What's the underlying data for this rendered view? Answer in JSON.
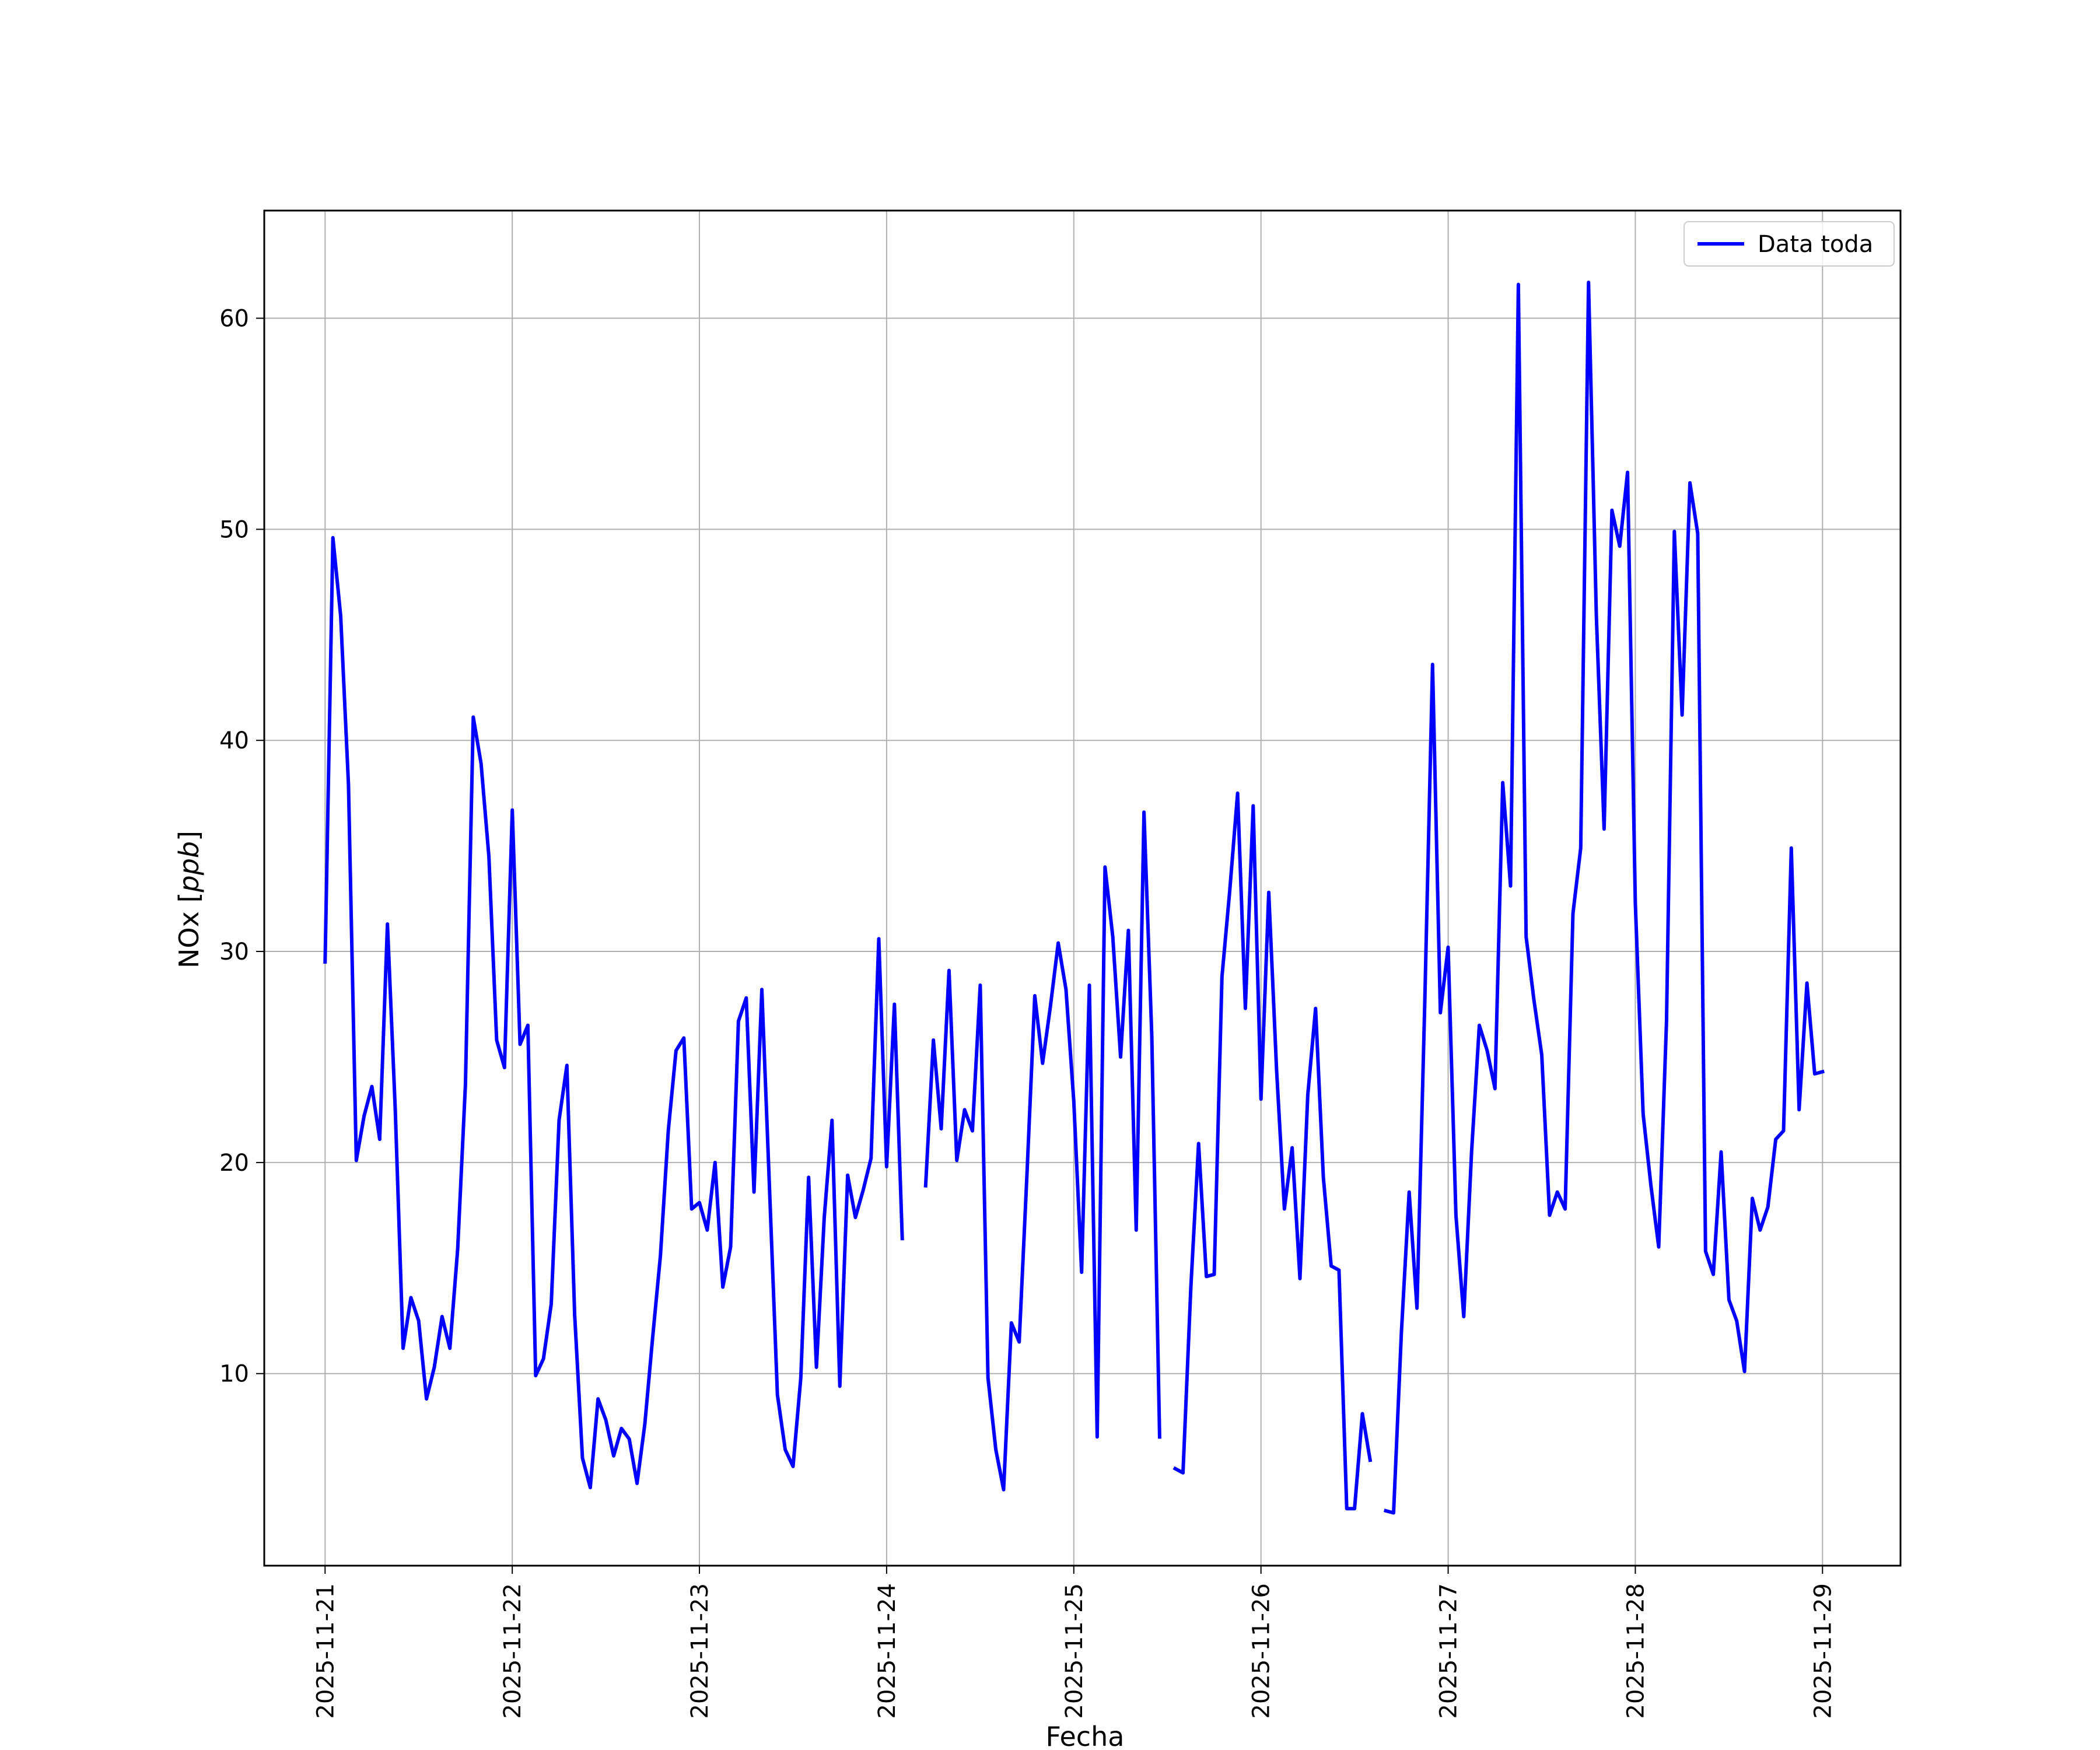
{
  "chart_data": {
    "type": "line",
    "xlabel": "Fecha",
    "ylabel": "NOx [ppb]",
    "ylabel_main": "NOx ",
    "ylabel_unit": "ppb",
    "x_ticks": [
      "2025-11-21",
      "2025-11-22",
      "2025-11-23",
      "2025-11-24",
      "2025-11-25",
      "2025-11-26",
      "2025-11-27",
      "2025-11-28",
      "2025-11-29"
    ],
    "y_ticks": [
      10,
      20,
      30,
      40,
      50,
      60
    ],
    "xlim": [
      "2025-11-20 16:12",
      "2025-11-29 10:00"
    ],
    "ylim": [
      0.9,
      65.1
    ],
    "grid": true,
    "legend_placement": "top-right",
    "series": [
      {
        "name": "Data toda",
        "color": "#0000ff",
        "points": [
          [
            "2025-11-21 00:00",
            29.5
          ],
          [
            "2025-11-21 01:00",
            49.6
          ],
          [
            "2025-11-21 02:00",
            45.9
          ],
          [
            "2025-11-21 03:00",
            37.9
          ],
          [
            "2025-11-21 04:00",
            20.1
          ],
          [
            "2025-11-21 05:00",
            22.2
          ],
          [
            "2025-11-21 06:00",
            23.6
          ],
          [
            "2025-11-21 07:00",
            21.1
          ],
          [
            "2025-11-21 08:00",
            31.3
          ],
          [
            "2025-11-21 09:00",
            22.5
          ],
          [
            "2025-11-21 10:00",
            11.2
          ],
          [
            "2025-11-21 11:00",
            13.6
          ],
          [
            "2025-11-21 12:00",
            12.5
          ],
          [
            "2025-11-21 13:00",
            8.8
          ],
          [
            "2025-11-21 14:00",
            10.3
          ],
          [
            "2025-11-21 15:00",
            12.7
          ],
          [
            "2025-11-21 16:00",
            11.2
          ],
          [
            "2025-11-21 17:00",
            15.9
          ],
          [
            "2025-11-21 18:00",
            23.7
          ],
          [
            "2025-11-21 19:00",
            41.1
          ],
          [
            "2025-11-21 20:00",
            38.9
          ],
          [
            "2025-11-21 21:00",
            34.5
          ],
          [
            "2025-11-21 22:00",
            25.8
          ],
          [
            "2025-11-21 23:00",
            24.5
          ],
          [
            "2025-11-22 00:00",
            36.7
          ],
          [
            "2025-11-22 01:00",
            25.6
          ],
          [
            "2025-11-22 02:00",
            26.5
          ],
          [
            "2025-11-22 03:00",
            9.9
          ],
          [
            "2025-11-22 04:00",
            10.7
          ],
          [
            "2025-11-22 05:00",
            13.3
          ],
          [
            "2025-11-22 06:00",
            22.0
          ],
          [
            "2025-11-22 07:00",
            24.6
          ],
          [
            "2025-11-22 08:00",
            12.8
          ],
          [
            "2025-11-22 09:00",
            6.0
          ],
          [
            "2025-11-22 10:00",
            4.6
          ],
          [
            "2025-11-22 11:00",
            8.8
          ],
          [
            "2025-11-22 12:00",
            7.8
          ],
          [
            "2025-11-22 13:00",
            6.1
          ],
          [
            "2025-11-22 14:00",
            7.4
          ],
          [
            "2025-11-22 15:00",
            6.9
          ],
          [
            "2025-11-22 16:00",
            4.8
          ],
          [
            "2025-11-22 17:00",
            7.6
          ],
          [
            "2025-11-22 18:00",
            11.7
          ],
          [
            "2025-11-22 19:00",
            15.6
          ],
          [
            "2025-11-22 20:00",
            21.5
          ],
          [
            "2025-11-22 21:00",
            25.3
          ],
          [
            "2025-11-22 22:00",
            25.9
          ],
          [
            "2025-11-22 23:00",
            17.8
          ],
          [
            "2025-11-23 00:00",
            18.1
          ],
          [
            "2025-11-23 01:00",
            16.8
          ],
          [
            "2025-11-23 02:00",
            20.0
          ],
          [
            "2025-11-23 03:00",
            14.1
          ],
          [
            "2025-11-23 04:00",
            16.0
          ],
          [
            "2025-11-23 05:00",
            26.7
          ],
          [
            "2025-11-23 06:00",
            27.8
          ],
          [
            "2025-11-23 07:00",
            18.6
          ],
          [
            "2025-11-23 08:00",
            28.2
          ],
          [
            "2025-11-23 09:00",
            18.6
          ],
          [
            "2025-11-23 10:00",
            9.0
          ],
          [
            "2025-11-23 11:00",
            6.4
          ],
          [
            "2025-11-23 12:00",
            5.6
          ],
          [
            "2025-11-23 13:00",
            9.8
          ],
          [
            "2025-11-23 14:00",
            19.3
          ],
          [
            "2025-11-23 15:00",
            10.3
          ],
          [
            "2025-11-23 16:00",
            17.4
          ],
          [
            "2025-11-23 17:00",
            22.0
          ],
          [
            "2025-11-23 18:00",
            9.4
          ],
          [
            "2025-11-23 19:00",
            19.4
          ],
          [
            "2025-11-23 20:00",
            17.4
          ],
          [
            "2025-11-23 21:00",
            18.7
          ],
          [
            "2025-11-23 22:00",
            20.2
          ],
          [
            "2025-11-23 23:00",
            30.6
          ],
          [
            "2025-11-24 00:00",
            19.8
          ],
          [
            "2025-11-24 01:00",
            27.5
          ],
          [
            "2025-11-24 02:00",
            16.4
          ],
          null,
          [
            "2025-11-24 05:00",
            18.9
          ],
          [
            "2025-11-24 06:00",
            25.8
          ],
          [
            "2025-11-24 07:00",
            21.6
          ],
          [
            "2025-11-24 08:00",
            29.1
          ],
          [
            "2025-11-24 09:00",
            20.1
          ],
          [
            "2025-11-24 10:00",
            22.5
          ],
          [
            "2025-11-24 11:00",
            21.5
          ],
          [
            "2025-11-24 12:00",
            28.4
          ],
          [
            "2025-11-24 13:00",
            9.8
          ],
          [
            "2025-11-24 14:00",
            6.4
          ],
          [
            "2025-11-24 15:00",
            4.5
          ],
          [
            "2025-11-24 16:00",
            12.4
          ],
          [
            "2025-11-24 17:00",
            11.5
          ],
          [
            "2025-11-24 18:00",
            19.5
          ],
          [
            "2025-11-24 19:00",
            27.9
          ],
          [
            "2025-11-24 20:00",
            24.7
          ],
          [
            "2025-11-24 21:00",
            27.4
          ],
          [
            "2025-11-24 22:00",
            30.4
          ],
          [
            "2025-11-24 23:00",
            28.2
          ],
          [
            "2025-11-25 00:00",
            22.9
          ],
          [
            "2025-11-25 01:00",
            14.8
          ],
          [
            "2025-11-25 02:00",
            28.4
          ],
          [
            "2025-11-25 03:00",
            7.0
          ],
          [
            "2025-11-25 04:00",
            34.0
          ],
          [
            "2025-11-25 05:00",
            30.7
          ],
          [
            "2025-11-25 06:00",
            25.0
          ],
          [
            "2025-11-25 07:00",
            31.0
          ],
          [
            "2025-11-25 08:00",
            16.8
          ],
          [
            "2025-11-25 09:00",
            36.6
          ],
          [
            "2025-11-25 10:00",
            26.0
          ],
          [
            "2025-11-25 11:00",
            7.0
          ],
          null,
          [
            "2025-11-25 13:00",
            5.5
          ],
          [
            "2025-11-25 14:00",
            5.3
          ],
          [
            "2025-11-25 15:00",
            14.0
          ],
          [
            "2025-11-25 16:00",
            20.9
          ],
          [
            "2025-11-25 17:00",
            14.6
          ],
          [
            "2025-11-25 18:00",
            14.7
          ],
          [
            "2025-11-25 19:00",
            28.8
          ],
          [
            "2025-11-25 20:00",
            32.9
          ],
          [
            "2025-11-25 21:00",
            37.5
          ],
          [
            "2025-11-25 22:00",
            27.3
          ],
          [
            "2025-11-25 23:00",
            36.9
          ],
          [
            "2025-11-26 00:00",
            23.0
          ],
          [
            "2025-11-26 01:00",
            32.8
          ],
          [
            "2025-11-26 02:00",
            24.4
          ],
          [
            "2025-11-26 03:00",
            17.8
          ],
          [
            "2025-11-26 04:00",
            20.7
          ],
          [
            "2025-11-26 05:00",
            14.5
          ],
          [
            "2025-11-26 06:00",
            23.2
          ],
          [
            "2025-11-26 07:00",
            27.3
          ],
          [
            "2025-11-26 08:00",
            19.3
          ],
          [
            "2025-11-26 09:00",
            15.1
          ],
          [
            "2025-11-26 10:00",
            14.9
          ],
          [
            "2025-11-26 11:00",
            3.6
          ],
          [
            "2025-11-26 12:00",
            3.6
          ],
          [
            "2025-11-26 13:00",
            8.1
          ],
          [
            "2025-11-26 14:00",
            5.9
          ],
          null,
          [
            "2025-11-26 16:00",
            3.5
          ],
          [
            "2025-11-26 17:00",
            3.4
          ],
          [
            "2025-11-26 18:00",
            11.9
          ],
          [
            "2025-11-26 19:00",
            18.6
          ],
          [
            "2025-11-26 20:00",
            13.1
          ],
          [
            "2025-11-26 21:00",
            27.5
          ],
          [
            "2025-11-26 22:00",
            43.6
          ],
          [
            "2025-11-26 23:00",
            27.1
          ],
          [
            "2025-11-27 00:00",
            30.2
          ],
          [
            "2025-11-27 01:00",
            17.5
          ],
          [
            "2025-11-27 02:00",
            12.7
          ],
          [
            "2025-11-27 03:00",
            20.5
          ],
          [
            "2025-11-27 04:00",
            26.5
          ],
          [
            "2025-11-27 05:00",
            25.3
          ],
          [
            "2025-11-27 06:00",
            23.5
          ],
          [
            "2025-11-27 07:00",
            38.0
          ],
          [
            "2025-11-27 08:00",
            33.1
          ],
          [
            "2025-11-27 09:00",
            61.6
          ],
          [
            "2025-11-27 10:00",
            30.7
          ],
          [
            "2025-11-27 11:00",
            27.7
          ],
          [
            "2025-11-27 12:00",
            25.1
          ],
          [
            "2025-11-27 13:00",
            17.5
          ],
          [
            "2025-11-27 14:00",
            18.6
          ],
          [
            "2025-11-27 15:00",
            17.8
          ],
          [
            "2025-11-27 16:00",
            31.8
          ],
          [
            "2025-11-27 17:00",
            34.9
          ],
          [
            "2025-11-27 18:00",
            61.7
          ],
          [
            "2025-11-27 19:00",
            45.9
          ],
          [
            "2025-11-27 20:00",
            35.8
          ],
          [
            "2025-11-27 21:00",
            50.9
          ],
          [
            "2025-11-27 22:00",
            49.2
          ],
          [
            "2025-11-27 23:00",
            52.7
          ],
          [
            "2025-11-28 00:00",
            32.3
          ],
          [
            "2025-11-28 01:00",
            22.3
          ],
          [
            "2025-11-28 02:00",
            18.9
          ],
          [
            "2025-11-28 03:00",
            16.0
          ],
          [
            "2025-11-28 04:00",
            26.7
          ],
          [
            "2025-11-28 05:00",
            49.9
          ],
          [
            "2025-11-28 06:00",
            41.2
          ],
          [
            "2025-11-28 07:00",
            52.2
          ],
          [
            "2025-11-28 08:00",
            49.8
          ],
          [
            "2025-11-28 09:00",
            15.8
          ],
          [
            "2025-11-28 10:00",
            14.7
          ],
          [
            "2025-11-28 11:00",
            20.5
          ],
          [
            "2025-11-28 12:00",
            13.5
          ],
          [
            "2025-11-28 13:00",
            12.5
          ],
          [
            "2025-11-28 14:00",
            10.1
          ],
          [
            "2025-11-28 15:00",
            18.3
          ],
          [
            "2025-11-28 16:00",
            16.8
          ],
          [
            "2025-11-28 17:00",
            17.9
          ],
          [
            "2025-11-28 18:00",
            21.1
          ],
          [
            "2025-11-28 19:00",
            21.5
          ],
          [
            "2025-11-28 20:00",
            34.9
          ],
          [
            "2025-11-28 21:00",
            22.5
          ],
          [
            "2025-11-28 22:00",
            28.5
          ],
          [
            "2025-11-28 23:00",
            24.2
          ],
          [
            "2025-11-29 00:00",
            24.3
          ]
        ]
      }
    ]
  }
}
